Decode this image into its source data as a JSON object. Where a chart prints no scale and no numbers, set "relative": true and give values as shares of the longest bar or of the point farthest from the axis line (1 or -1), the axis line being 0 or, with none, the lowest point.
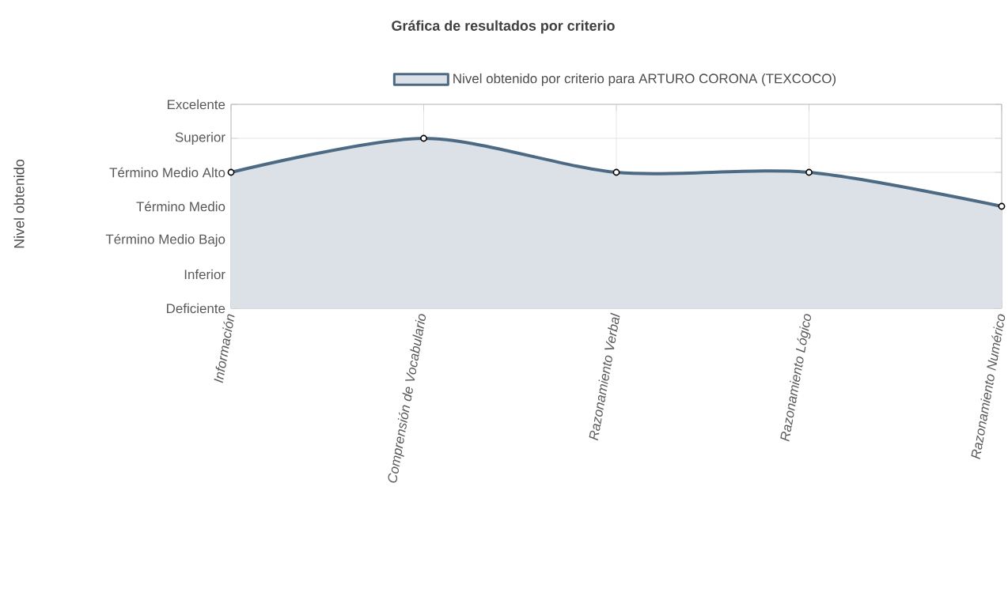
{
  "chart_data": {
    "type": "area",
    "title": "Gráfica de resultados por criterio",
    "categories": [
      "Información",
      "Comprensión de Vocabulario",
      "Razonamiento Verbal",
      "Razonamiento Lógico",
      "Razonamiento Numérico"
    ],
    "series": [
      {
        "name": "Nivel obtenido por criterio para ARTURO CORONA (TEXCOCO)",
        "color": "#4d6a85",
        "values": [
          0.8,
          1,
          0.8,
          0.8,
          0.6
        ]
      }
    ],
    "relative": true,
    "annotations": [
      "Deficiente",
      "Inferior",
      "Término Medio Bajo",
      "Término Medio",
      "Término Medio Alto",
      "Superior",
      "Excelente",
      "Nivel obtenido"
    ],
    "grid": true,
    "legend": "top",
    "marker": "circle"
  }
}
